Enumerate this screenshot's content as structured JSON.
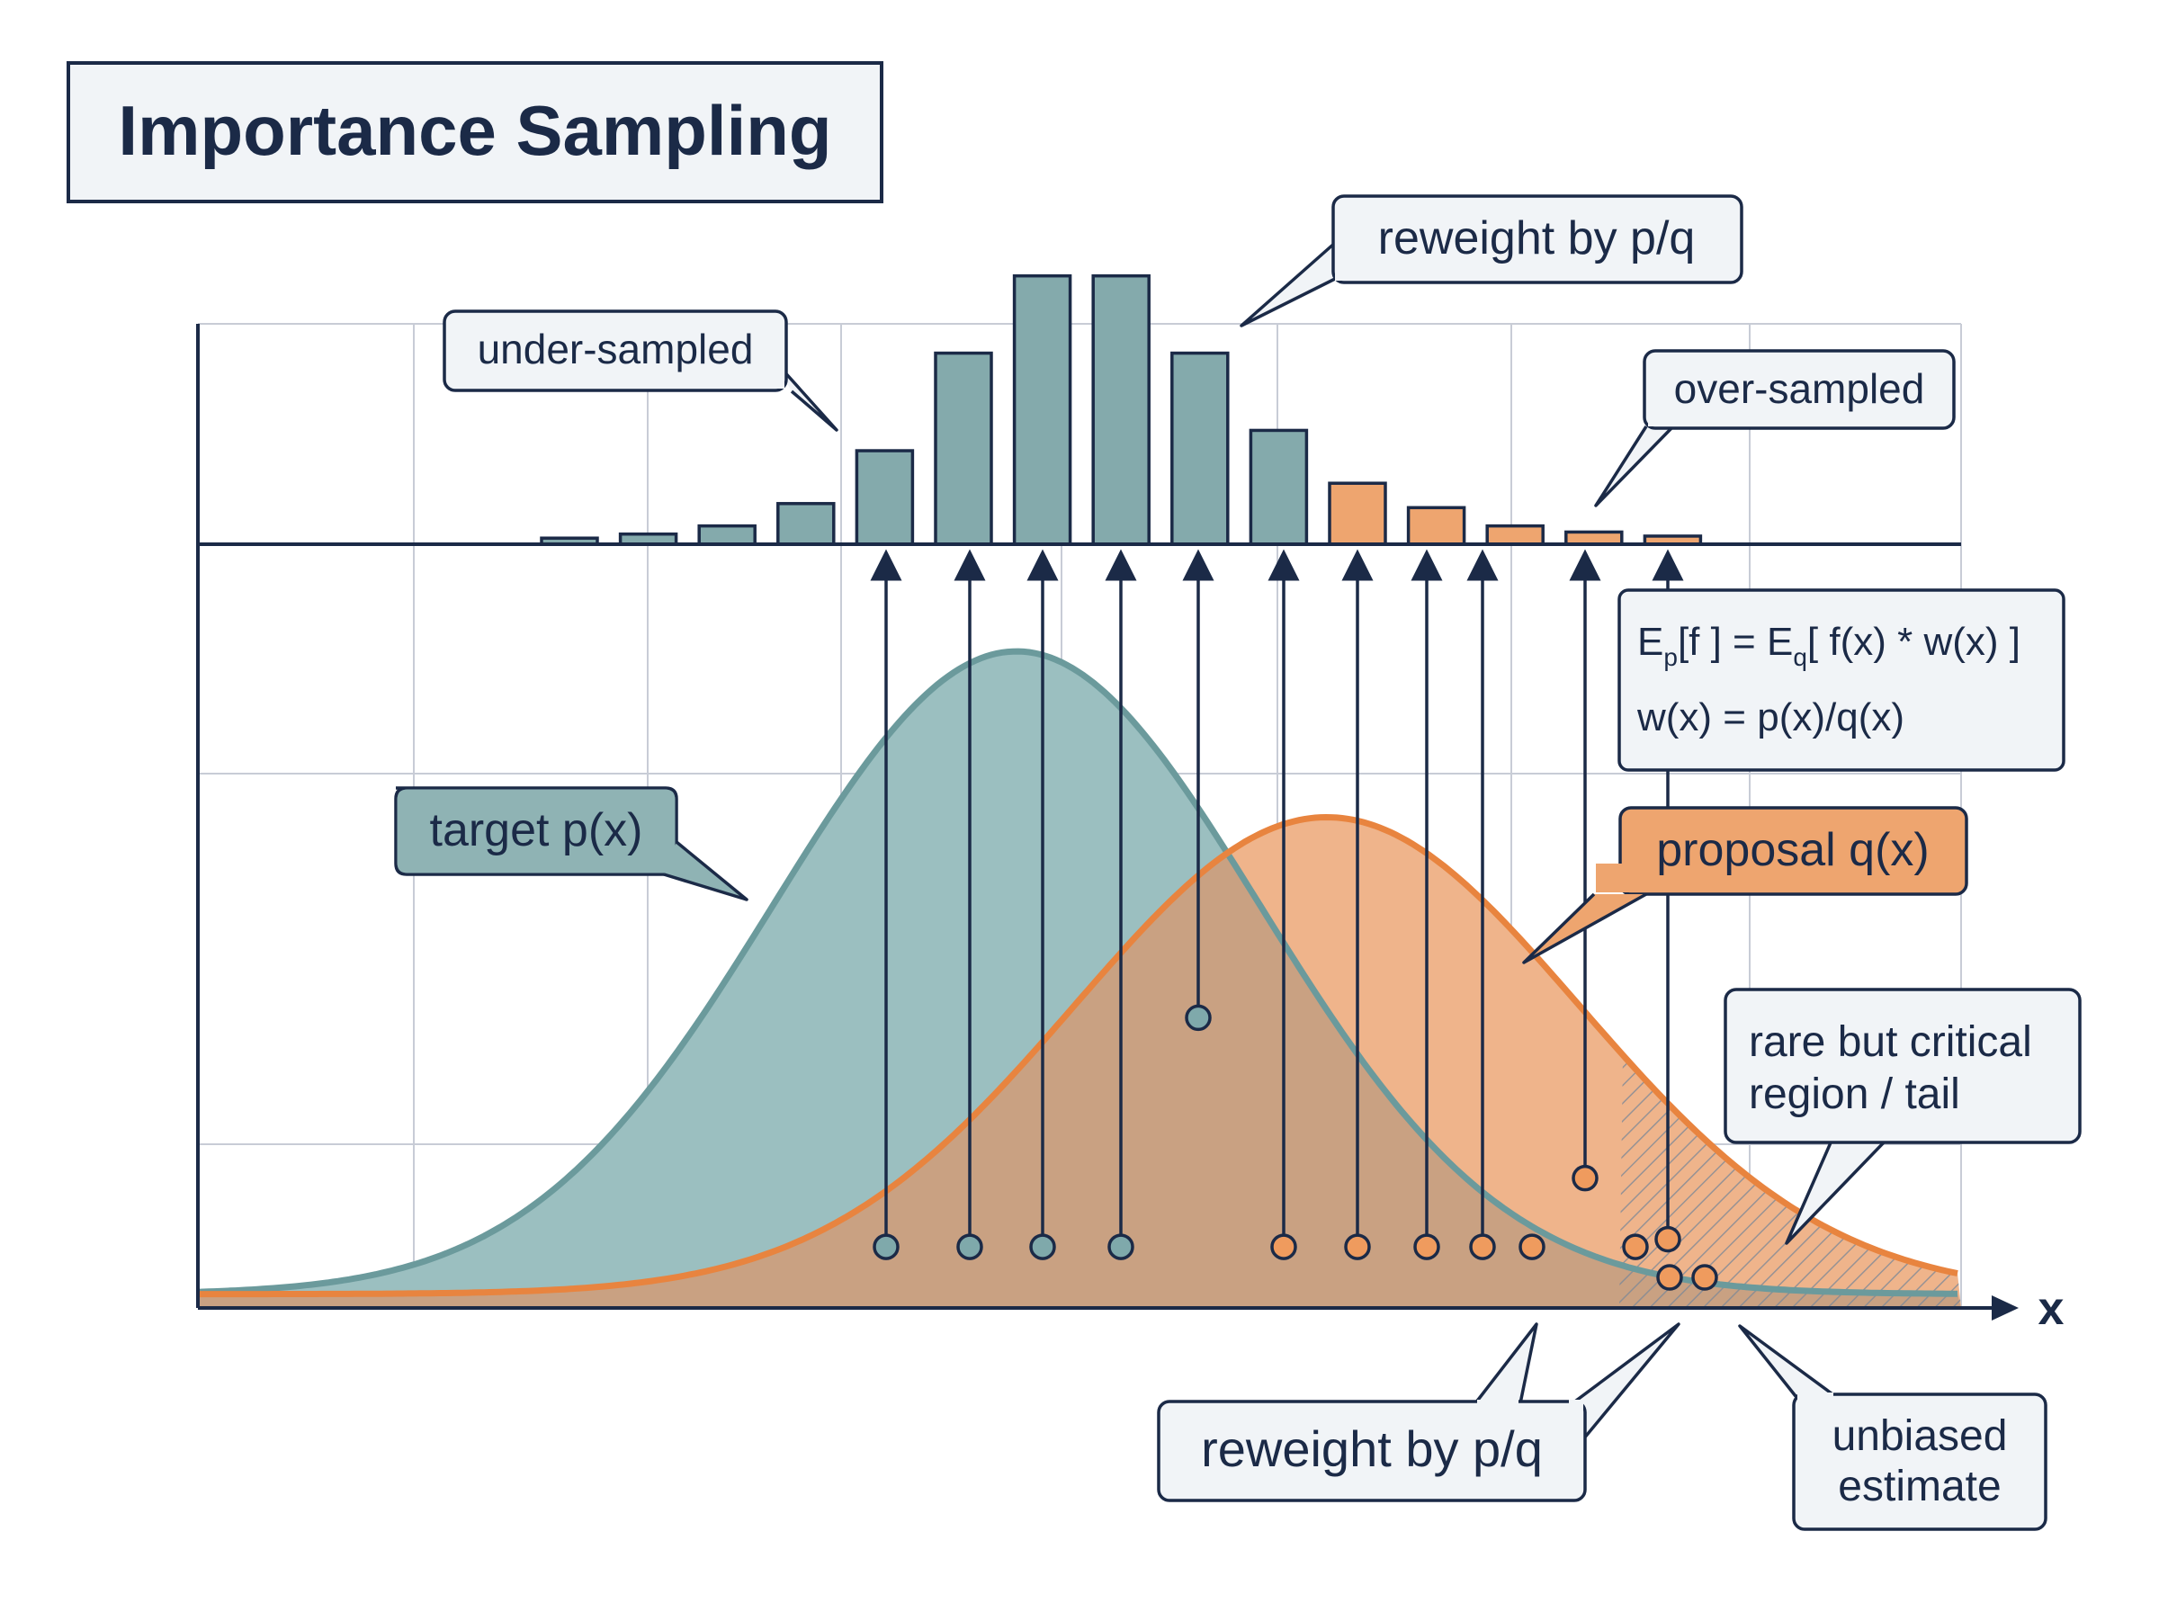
{
  "title": "Importance Sampling",
  "colors": {
    "target": "#6b9a9c",
    "target_fill": "#9bbfc0",
    "proposal": "#e8843f",
    "proposal_fill": "#efb48b",
    "overlap_fill": "#c9a182",
    "ink": "#1b2a47",
    "grid": "#c8ccd6",
    "box_fill": "#f1f4f7",
    "target_label_fill": "#8fb3b4",
    "proposal_label_fill": "#eea56f"
  },
  "labels": {
    "target": "target p(x)",
    "proposal": "proposal q(x)",
    "x_axis": "x",
    "under_sampled": "under-sampled",
    "over_sampled": "over-sampled",
    "reweight_top": "reweight by p/q",
    "reweight_bottom": "reweight by p/q",
    "rare_line1": "rare but critical",
    "rare_line2": "region / tail",
    "unbiased_line1": "unbiased",
    "unbiased_line2": "estimate"
  },
  "formula": {
    "line1_parts": [
      "E",
      "p",
      "[f ] = E",
      "q",
      "[ f(x) * w(x) ]"
    ],
    "line2": "w(x) = p(x)/q(x)"
  },
  "histogram": {
    "bars": [
      {
        "height": 0.03,
        "group": "target"
      },
      {
        "height": 0.05,
        "group": "target"
      },
      {
        "height": 0.09,
        "group": "target"
      },
      {
        "height": 0.2,
        "group": "target"
      },
      {
        "height": 0.46,
        "group": "target"
      },
      {
        "height": 0.94,
        "group": "target"
      },
      {
        "height": 1.32,
        "group": "target"
      },
      {
        "height": 1.32,
        "group": "target"
      },
      {
        "height": 0.94,
        "group": "target"
      },
      {
        "height": 0.56,
        "group": "target"
      },
      {
        "height": 0.3,
        "group": "proposal"
      },
      {
        "height": 0.18,
        "group": "proposal"
      },
      {
        "height": 0.09,
        "group": "proposal"
      },
      {
        "height": 0.06,
        "group": "proposal"
      },
      {
        "height": 0.04,
        "group": "proposal"
      }
    ]
  },
  "samples": [
    {
      "group": "target",
      "level": 0.08,
      "arrow": true
    },
    {
      "group": "target",
      "level": 0.08,
      "arrow": true
    },
    {
      "group": "target",
      "level": 0.08,
      "arrow": true
    },
    {
      "group": "target",
      "level": 0.08,
      "arrow": true
    },
    {
      "group": "target",
      "level": 0.38,
      "arrow": true
    },
    {
      "group": "proposal",
      "level": 0.08,
      "arrow": true
    },
    {
      "group": "proposal",
      "level": 0.08,
      "arrow": true
    },
    {
      "group": "proposal",
      "level": 0.08,
      "arrow": true
    },
    {
      "group": "proposal",
      "level": 0.08,
      "arrow": true
    },
    {
      "group": "proposal",
      "level": 0.08,
      "arrow": false
    },
    {
      "group": "proposal",
      "level": 0.17,
      "arrow": true
    },
    {
      "group": "proposal",
      "level": 0.08,
      "arrow": false
    },
    {
      "group": "proposal",
      "level": 0.09,
      "arrow": true
    },
    {
      "group": "proposal",
      "level": 0.04,
      "arrow": false
    },
    {
      "group": "proposal",
      "level": 0.04,
      "arrow": false
    }
  ]
}
